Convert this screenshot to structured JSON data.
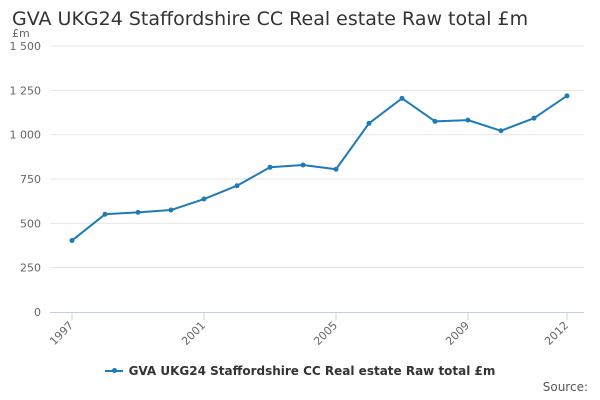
{
  "chart_data": {
    "type": "line",
    "title": "GVA UKG24 Staffordshire CC Real estate Raw total £m",
    "ylabel": "£m",
    "xlabel": "",
    "x": [
      1997,
      1998,
      1999,
      2000,
      2001,
      2002,
      2003,
      2004,
      2005,
      2006,
      2007,
      2008,
      2009,
      2010,
      2011,
      2012
    ],
    "series": [
      {
        "name": "GVA UKG24 Staffordshire CC Real estate Raw total £m",
        "values": [
          403,
          551,
          562,
          575,
          637,
          712,
          816,
          829,
          805,
          1064,
          1205,
          1075,
          1082,
          1022,
          1093,
          1219
        ]
      }
    ],
    "x_tick_labels": [
      "1997",
      "2001",
      "2005",
      "2009",
      "2012"
    ],
    "y_tick_labels": [
      "0",
      "250",
      "500",
      "750",
      "1 000",
      "1 250",
      "1 500"
    ],
    "y_ticks": [
      0,
      250,
      500,
      750,
      1000,
      1250,
      1500
    ],
    "xlim": [
      1997,
      2012
    ],
    "ylim": [
      0,
      1500
    ],
    "grid": true,
    "legend_position": "bottom",
    "colors": {
      "series": "#1f7ab8",
      "grid": "#e6e6e6",
      "axis": "#c0d0e0"
    }
  },
  "footer": {
    "source": "Source:"
  }
}
